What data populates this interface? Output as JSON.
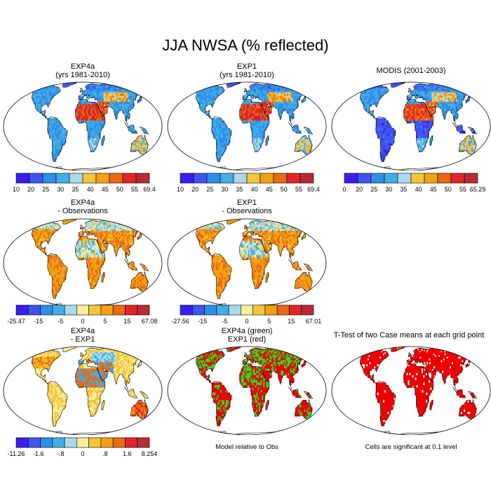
{
  "title": "JJA NWSA (% reflected)",
  "panels": [
    {
      "id": "exp4a",
      "title1": "EXP4a",
      "title2": "(yrs 1981-2010)",
      "scheme": "abs",
      "mode": "abs",
      "colorbar": {
        "labels": [
          "10",
          "20",
          "25",
          "30",
          "35",
          "40",
          "45",
          "50",
          "55",
          "69.4"
        ],
        "label_pos": "interior"
      }
    },
    {
      "id": "exp1",
      "title1": "EXP1",
      "title2": "(yrs 1981-2010)",
      "scheme": "abs",
      "mode": "abs2",
      "colorbar": {
        "labels": [
          "10",
          "20",
          "25",
          "30",
          "35",
          "40",
          "45",
          "50",
          "55",
          "69.4"
        ],
        "label_pos": "interior"
      }
    },
    {
      "id": "modis",
      "title1": "MODIS (2001-2003)",
      "title2": "",
      "scheme": "abs",
      "mode": "modis",
      "colorbar": {
        "labels": [
          "0",
          "20",
          "25",
          "30",
          "35",
          "40",
          "45",
          "50",
          "55",
          "65.29"
        ],
        "label_pos": "interior"
      }
    },
    {
      "id": "exp4a_obs",
      "title1": "EXP4a",
      "title2": "- Observations",
      "scheme": "diff",
      "mode": "diff",
      "colorbar": {
        "labels": [
          "-25.47",
          "-15",
          "-5",
          "0",
          "5",
          "15",
          "67.08"
        ],
        "label_pos": "sparse"
      }
    },
    {
      "id": "exp1_obs",
      "title1": "EXP1",
      "title2": "- Observations",
      "scheme": "diff",
      "mode": "diff2",
      "colorbar": {
        "labels": [
          "-27.56",
          "-15",
          "-5",
          "0",
          "5",
          "15",
          "67.01"
        ],
        "label_pos": "sparse"
      }
    },
    {
      "id": "exp4a_exp1",
      "title1": "EXP4a",
      "title2": "- EXP1",
      "scheme": "diff2",
      "mode": "diffb",
      "colorbar": {
        "labels": [
          "-11.26",
          "-1.6",
          "-.8",
          "0",
          ".8",
          "1.6",
          "8.254"
        ],
        "label_pos": "sparse"
      }
    },
    {
      "id": "green_red",
      "title1": "EXP4a (green)",
      "title2": "EXP1 (red)",
      "scheme": "gr",
      "mode": "gr",
      "note": "Model relative to Obs"
    },
    {
      "id": "ttest",
      "title1": "T-Test of two Case means at each grid point",
      "title2": "",
      "scheme": "red",
      "mode": "red",
      "note": "Cells are significant at 0.1 level"
    }
  ],
  "colors": {
    "abs": [
      "#3b1ef0",
      "#3f55ee",
      "#2f8ee8",
      "#42aee8",
      "#a9d9ef",
      "#f6c53a",
      "#f3a013",
      "#e96a12",
      "#e1262a",
      "#b82a36"
    ],
    "diff": [
      "#3b1ef0",
      "#3f55ee",
      "#2f8ee8",
      "#42aee8",
      "#a9d9ef",
      "#f7ef9a",
      "#f6c53a",
      "#f3a013",
      "#e96a12",
      "#e1262a",
      "#b82a36"
    ],
    "land_green": "#22e022",
    "land_red": "#ee0000",
    "ocean": "#ffffff",
    "outline": "#000000"
  }
}
